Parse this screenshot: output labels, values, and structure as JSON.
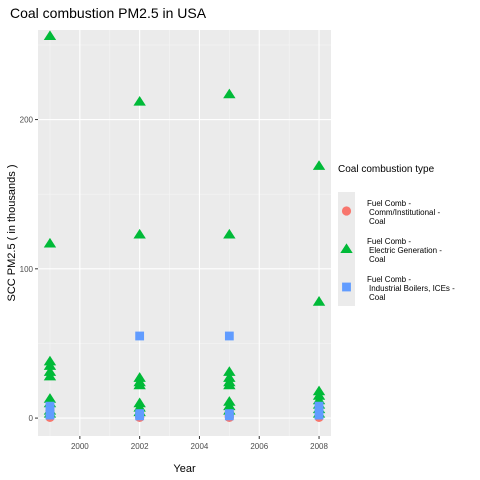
{
  "chart_data": {
    "type": "scatter",
    "title": "Coal combustion PM2.5 in USA",
    "xlabel": "Year",
    "ylabel": "SCC PM2.5  ( in thousands )",
    "xlim": [
      1998.6,
      2008.4
    ],
    "ylim": [
      -12,
      260
    ],
    "x_ticks": [
      2000,
      2002,
      2004,
      2006,
      2008
    ],
    "x_tick_labels": [
      "2000",
      "2002",
      "2004",
      "2006",
      "2008"
    ],
    "y_ticks": [
      0,
      100,
      200
    ],
    "y_tick_labels": [
      "0",
      "100",
      "200"
    ],
    "grid": true,
    "legend": {
      "title": "Coal combustion type",
      "position": "right"
    },
    "series": [
      {
        "name": "Fuel Comb -\nComm/Institutional -\nCoal",
        "color": "#F8766D",
        "shape": "circle",
        "points": [
          {
            "x": 1999,
            "y": 0.5
          },
          {
            "x": 1999,
            "y": 1
          },
          {
            "x": 1999,
            "y": 2
          },
          {
            "x": 1999,
            "y": 3
          },
          {
            "x": 1999,
            "y": 4
          },
          {
            "x": 1999,
            "y": 5
          },
          {
            "x": 2002,
            "y": 0.5
          },
          {
            "x": 2002,
            "y": 1
          },
          {
            "x": 2002,
            "y": 2
          },
          {
            "x": 2002,
            "y": 3
          },
          {
            "x": 2002,
            "y": 5
          },
          {
            "x": 2005,
            "y": 0.5
          },
          {
            "x": 2005,
            "y": 1
          },
          {
            "x": 2005,
            "y": 2
          },
          {
            "x": 2005,
            "y": 3
          },
          {
            "x": 2005,
            "y": 4
          },
          {
            "x": 2008,
            "y": 0.5
          },
          {
            "x": 2008,
            "y": 1
          },
          {
            "x": 2008,
            "y": 1.5
          }
        ]
      },
      {
        "name": "Fuel Comb -\nElectric Generation -\nCoal",
        "color": "#00BA38",
        "shape": "triangle",
        "points": [
          {
            "x": 1999,
            "y": 256
          },
          {
            "x": 1999,
            "y": 117
          },
          {
            "x": 1999,
            "y": 38
          },
          {
            "x": 1999,
            "y": 35
          },
          {
            "x": 1999,
            "y": 31
          },
          {
            "x": 1999,
            "y": 28
          },
          {
            "x": 1999,
            "y": 13
          },
          {
            "x": 1999,
            "y": 10
          },
          {
            "x": 1999,
            "y": 5
          },
          {
            "x": 1999,
            "y": 3
          },
          {
            "x": 2002,
            "y": 212
          },
          {
            "x": 2002,
            "y": 123
          },
          {
            "x": 2002,
            "y": 27
          },
          {
            "x": 2002,
            "y": 24
          },
          {
            "x": 2002,
            "y": 22
          },
          {
            "x": 2002,
            "y": 10
          },
          {
            "x": 2002,
            "y": 7
          },
          {
            "x": 2002,
            "y": 4
          },
          {
            "x": 2005,
            "y": 217
          },
          {
            "x": 2005,
            "y": 123
          },
          {
            "x": 2005,
            "y": 31
          },
          {
            "x": 2005,
            "y": 27
          },
          {
            "x": 2005,
            "y": 24
          },
          {
            "x": 2005,
            "y": 22
          },
          {
            "x": 2005,
            "y": 11
          },
          {
            "x": 2005,
            "y": 8
          },
          {
            "x": 2005,
            "y": 5
          },
          {
            "x": 2008,
            "y": 169
          },
          {
            "x": 2008,
            "y": 78
          },
          {
            "x": 2008,
            "y": 18
          },
          {
            "x": 2008,
            "y": 15
          },
          {
            "x": 2008,
            "y": 12
          },
          {
            "x": 2008,
            "y": 9
          },
          {
            "x": 2008,
            "y": 6
          },
          {
            "x": 2008,
            "y": 3
          }
        ]
      },
      {
        "name": "Fuel Comb -\nIndustrial Boilers, ICEs -\nCoal",
        "color": "#619CFF",
        "shape": "square",
        "points": [
          {
            "x": 1999,
            "y": 8
          },
          {
            "x": 1999,
            "y": 6
          },
          {
            "x": 1999,
            "y": 4
          },
          {
            "x": 1999,
            "y": 2
          },
          {
            "x": 2002,
            "y": 55
          },
          {
            "x": 2002,
            "y": 3
          },
          {
            "x": 2002,
            "y": 1.5
          },
          {
            "x": 2005,
            "y": 55
          },
          {
            "x": 2005,
            "y": 3
          },
          {
            "x": 2005,
            "y": 1.5
          },
          {
            "x": 2008,
            "y": 8
          },
          {
            "x": 2008,
            "y": 5
          },
          {
            "x": 2008,
            "y": 2
          }
        ]
      }
    ]
  }
}
